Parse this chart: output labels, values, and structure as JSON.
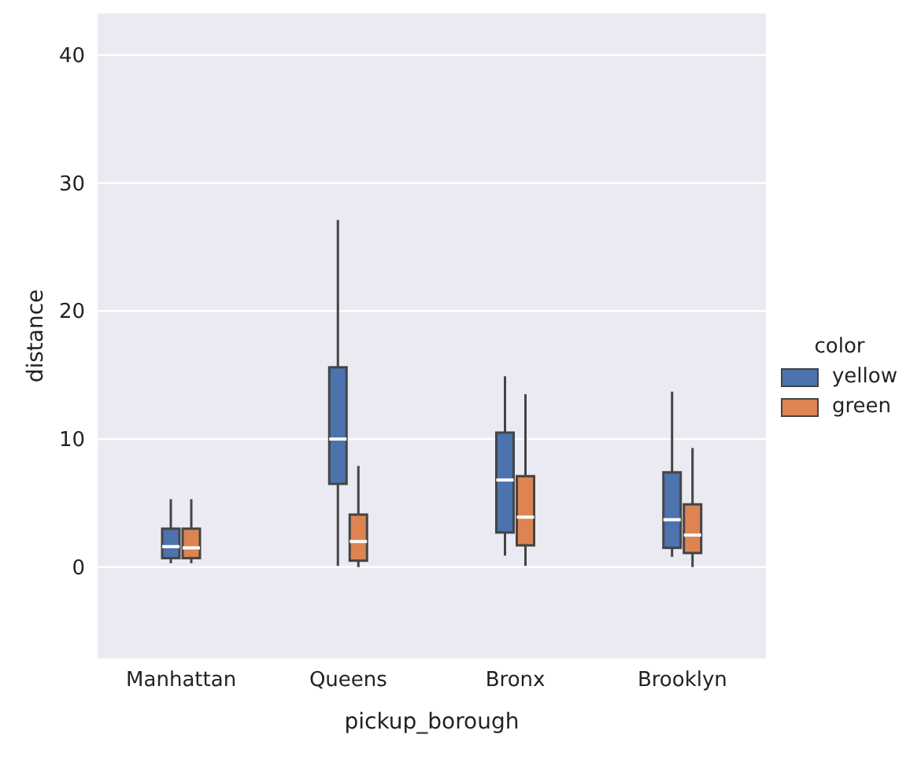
{
  "chart_data": {
    "type": "box",
    "xlabel": "pickup_borough",
    "ylabel": "distance",
    "legend_title": "color",
    "categories": [
      "Manhattan",
      "Queens",
      "Bronx",
      "Brooklyn"
    ],
    "ylim": [
      -7.2,
      43.3
    ],
    "yticks": [
      0,
      10,
      20,
      30,
      40
    ],
    "grid": "y",
    "legend": "right",
    "series": [
      {
        "name": "yellow",
        "color": "#4c72b0",
        "boxes": [
          {
            "low": 0.3,
            "q1": 0.7,
            "median": 1.6,
            "q3": 3.0,
            "high": 5.3
          },
          {
            "low": 0.1,
            "q1": 6.5,
            "median": 10.0,
            "q3": 15.6,
            "high": 27.1
          },
          {
            "low": 0.9,
            "q1": 2.7,
            "median": 6.8,
            "q3": 10.5,
            "high": 14.9
          },
          {
            "low": 0.8,
            "q1": 1.5,
            "median": 3.7,
            "q3": 7.4,
            "high": 13.7
          }
        ]
      },
      {
        "name": "green",
        "color": "#dd8452",
        "boxes": [
          {
            "low": 0.3,
            "q1": 0.7,
            "median": 1.5,
            "q3": 3.0,
            "high": 5.3
          },
          {
            "low": 0.0,
            "q1": 0.5,
            "median": 2.0,
            "q3": 4.1,
            "high": 7.9
          },
          {
            "low": 0.1,
            "q1": 1.7,
            "median": 3.9,
            "q3": 7.1,
            "high": 13.5
          },
          {
            "low": 0.0,
            "q1": 1.1,
            "median": 2.5,
            "q3": 4.9,
            "high": 9.3
          }
        ]
      }
    ]
  }
}
